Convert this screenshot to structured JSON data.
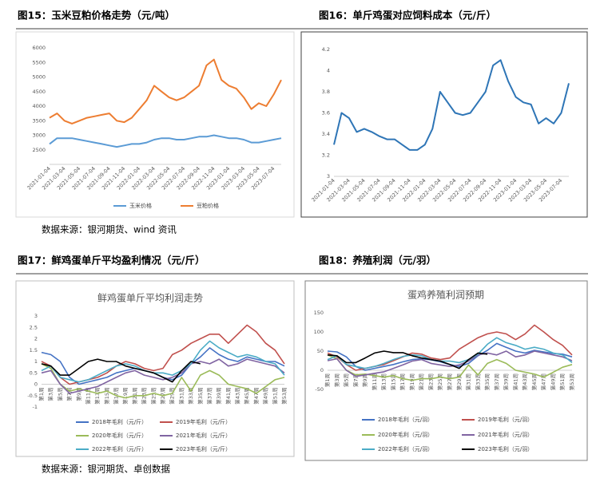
{
  "captions": [
    "图15：玉米豆粕价格走势（元/吨）",
    "图16：单斤鸡蛋对应饲料成本（元/斤）",
    "图17：鲜鸡蛋单斤平均盈利情况（元/斤）",
    "图18：养殖利润（元/羽）"
  ],
  "sources": [
    "数据来源：银河期货、wind 资讯",
    "数据来源：银河期货、卓创数据"
  ],
  "chart_data": [
    {
      "type": "line",
      "categories": [
        "2021-01-04",
        null,
        "2021-03-04",
        null,
        "2021-05-04",
        null,
        "2021-07-04",
        null,
        "2021-09-04",
        null,
        "2021-11-04",
        null,
        "2022-01-04",
        null,
        "2022-03-04",
        null,
        "2022-05-04",
        null,
        "2022-07-04",
        null,
        "2022-09-04",
        null,
        "2022-11-04",
        null,
        "2023-01-04",
        null,
        "2023-03-04",
        null,
        "2023-05-04",
        null,
        "2023-07-04",
        null
      ],
      "series": [
        {
          "name": "玉米价格",
          "color": "#5b9bd5",
          "values": [
            2700,
            2900,
            2900,
            2900,
            2850,
            2800,
            2750,
            2700,
            2650,
            2600,
            2650,
            2700,
            2700,
            2750,
            2850,
            2900,
            2900,
            2850,
            2850,
            2900,
            2950,
            2950,
            3000,
            2950,
            2900,
            2900,
            2850,
            2750,
            2750,
            2800,
            2850,
            2900
          ]
        },
        {
          "name": "豆粕价格",
          "color": "#ed7d31",
          "values": [
            3600,
            3750,
            3500,
            3400,
            3500,
            3600,
            3650,
            3700,
            3750,
            3500,
            3450,
            3600,
            3900,
            4200,
            4700,
            4500,
            4300,
            4200,
            4300,
            4500,
            4700,
            5400,
            5600,
            4900,
            4700,
            4600,
            4300,
            3900,
            4100,
            4000,
            4400,
            4900
          ]
        }
      ],
      "ylim": [
        2000,
        6000
      ],
      "yticks": [
        2500,
        3000,
        3500,
        4000,
        4500,
        5000,
        5500,
        6000
      ],
      "legend": "bottom"
    },
    {
      "type": "line",
      "categories": [
        "2021-01-04",
        null,
        "2021-03-04",
        null,
        "2021-05-04",
        null,
        "2021-07-04",
        null,
        "2021-09-04",
        null,
        "2021-11-04",
        null,
        "2022-01-04",
        null,
        "2022-03-04",
        null,
        "2022-05-04",
        null,
        "2022-07-04",
        null,
        "2022-09-04",
        null,
        "2022-11-04",
        null,
        "2023-01-04",
        null,
        "2023-03-04",
        null,
        "2023-05-04",
        null,
        "2023-07-04",
        null
      ],
      "color": "#2e75b6",
      "values": [
        3.3,
        3.6,
        3.55,
        3.42,
        3.45,
        3.42,
        3.38,
        3.35,
        3.35,
        3.3,
        3.25,
        3.25,
        3.3,
        3.45,
        3.8,
        3.7,
        3.6,
        3.58,
        3.6,
        3.7,
        3.8,
        4.05,
        4.1,
        3.9,
        3.75,
        3.7,
        3.68,
        3.5,
        3.55,
        3.5,
        3.6,
        3.88
      ],
      "ylim": [
        3,
        4.2
      ],
      "yticks": [
        3,
        3.2,
        3.4,
        3.6,
        3.8,
        4,
        4.2
      ]
    },
    {
      "type": "line",
      "title": "鲜鸡蛋单斤平均利润走势",
      "categories": [
        "第1周",
        "第3周",
        "第5周",
        "第7周",
        "第9周",
        "第11周",
        "第13周",
        "第15周",
        "第17周",
        "第19周",
        "第21周",
        "第23周",
        "第25周",
        "第27周",
        "第29周",
        "第31周",
        "第33周",
        "第35周",
        "第37周",
        "第39周",
        "第41周",
        "第43周",
        "第45周",
        "第47周",
        "第49周",
        "第51周",
        "第53周"
      ],
      "series": [
        {
          "name": "2018年毛利（元/斤）",
          "color": "#4472c4",
          "values": [
            1.4,
            1.3,
            1.0,
            0.3,
            0.0,
            0.1,
            0.2,
            0.3,
            0.5,
            0.6,
            0.7,
            0.6,
            0.5,
            0.3,
            0.2,
            0.4,
            0.9,
            1.2,
            1.6,
            1.3,
            1.1,
            1.0,
            1.2,
            1.1,
            1.0,
            1.0,
            0.8
          ]
        },
        {
          "name": "2019年毛利（元/斤）",
          "color": "#c0504d",
          "values": [
            1.0,
            0.8,
            0.3,
            0.0,
            0.1,
            0.2,
            0.3,
            0.5,
            0.8,
            1.0,
            0.9,
            0.7,
            0.6,
            0.7,
            1.3,
            1.5,
            1.8,
            2.0,
            2.2,
            2.2,
            1.8,
            2.2,
            2.6,
            2.3,
            1.8,
            1.5,
            0.9
          ]
        },
        {
          "name": "2020年毛利（元/斤）",
          "color": "#9bbb59",
          "values": [
            0.9,
            0.7,
            0.0,
            -0.3,
            -0.2,
            -0.3,
            -0.4,
            -0.3,
            -0.5,
            -0.6,
            -0.5,
            -0.5,
            -0.4,
            -0.5,
            -0.4,
            0.3,
            -0.3,
            0.4,
            0.6,
            0.4,
            0.0,
            -0.1,
            -0.2,
            -0.4,
            -0.1,
            0.2,
            0.3
          ]
        },
        {
          "name": "2021年毛利（元/斤）",
          "color": "#8064a2",
          "values": [
            0.5,
            0.6,
            0.0,
            -0.4,
            -0.3,
            -0.2,
            -0.1,
            0.1,
            0.3,
            0.5,
            0.6,
            0.4,
            0.3,
            0.2,
            0.3,
            0.5,
            0.9,
            1.0,
            0.9,
            1.1,
            0.8,
            0.9,
            1.1,
            1.0,
            0.9,
            0.8,
            0.5
          ]
        },
        {
          "name": "2022年毛利（元/斤）",
          "color": "#4bacc6",
          "values": [
            0.6,
            0.8,
            0.3,
            0.2,
            0.1,
            0.2,
            0.4,
            0.6,
            0.8,
            0.9,
            0.8,
            0.6,
            0.5,
            0.5,
            0.4,
            0.6,
            0.9,
            1.5,
            1.9,
            1.6,
            1.4,
            1.2,
            1.3,
            1.2,
            1.0,
            0.9,
            0.4
          ]
        },
        {
          "name": "2023年毛利（元/斤）",
          "color": "#000000",
          "values": [
            0.9,
            0.8,
            0.4,
            0.4,
            0.7,
            1.0,
            1.1,
            1.0,
            1.0,
            0.8,
            0.7,
            0.6,
            0.5,
            0.3,
            0.1,
            0.6,
            1.0,
            0.9,
            null,
            null,
            null,
            null,
            null,
            null,
            null,
            null,
            null
          ]
        }
      ],
      "ylim": [
        -1,
        3
      ],
      "yticks": [
        -1,
        -0.5,
        0,
        0.5,
        1,
        1.5,
        2,
        2.5,
        3
      ],
      "legend": "bottom"
    },
    {
      "type": "line",
      "title": "蛋鸡养殖利润预期",
      "categories": [
        "第1周",
        "第3周",
        "第5周",
        "第7周",
        "第9周",
        "第11周",
        "第13周",
        "第15周",
        "第17周",
        "第19周",
        "第21周",
        "第23周",
        "第25周",
        "第27周",
        "第29周",
        "第31周",
        "第33周",
        "第35周",
        "第37周",
        "第39周",
        "第41周",
        "第43周",
        "第45周",
        "第47周",
        "第49周",
        "第51周",
        "第53周"
      ],
      "series": [
        {
          "name": "2018年毛利（元/羽）",
          "color": "#4472c4",
          "values": [
            50,
            48,
            35,
            10,
            0,
            5,
            10,
            15,
            22,
            28,
            30,
            27,
            22,
            15,
            10,
            18,
            38,
            52,
            70,
            60,
            50,
            45,
            52,
            48,
            44,
            42,
            35
          ]
        },
        {
          "name": "2019年毛利（元/羽）",
          "color": "#c0504d",
          "values": [
            45,
            35,
            15,
            0,
            5,
            10,
            15,
            25,
            35,
            45,
            42,
            32,
            28,
            32,
            55,
            70,
            85,
            95,
            100,
            95,
            80,
            95,
            118,
            100,
            80,
            65,
            40
          ]
        },
        {
          "name": "2020年毛利（元/羽）",
          "color": "#9bbb59",
          "values": [
            40,
            30,
            0,
            -12,
            -10,
            -14,
            -18,
            -14,
            -22,
            -26,
            -22,
            -22,
            -18,
            -22,
            -18,
            14,
            -12,
            18,
            28,
            18,
            0,
            -5,
            -10,
            -18,
            -5,
            8,
            15
          ]
        },
        {
          "name": "2021年毛利（元/羽）",
          "color": "#8064a2",
          "values": [
            25,
            30,
            0,
            -16,
            -12,
            -8,
            -4,
            5,
            14,
            24,
            28,
            18,
            14,
            10,
            14,
            24,
            40,
            45,
            40,
            50,
            35,
            40,
            50,
            45,
            40,
            35,
            25
          ]
        },
        {
          "name": "2022年毛利（元/羽）",
          "color": "#4bacc6",
          "values": [
            28,
            38,
            15,
            10,
            5,
            10,
            18,
            28,
            36,
            40,
            38,
            28,
            24,
            24,
            20,
            28,
            42,
            68,
            85,
            72,
            65,
            55,
            60,
            55,
            45,
            40,
            20
          ]
        },
        {
          "name": "2023年毛利（元/羽）",
          "color": "#000000",
          "values": [
            40,
            38,
            20,
            20,
            32,
            45,
            50,
            46,
            46,
            38,
            32,
            28,
            24,
            15,
            5,
            28,
            45,
            42,
            null,
            null,
            null,
            null,
            null,
            null,
            null,
            null,
            null
          ]
        }
      ],
      "ylim": [
        -50,
        150
      ],
      "yticks": [
        -50,
        0,
        50,
        100,
        150
      ],
      "legend": "bottom"
    }
  ]
}
